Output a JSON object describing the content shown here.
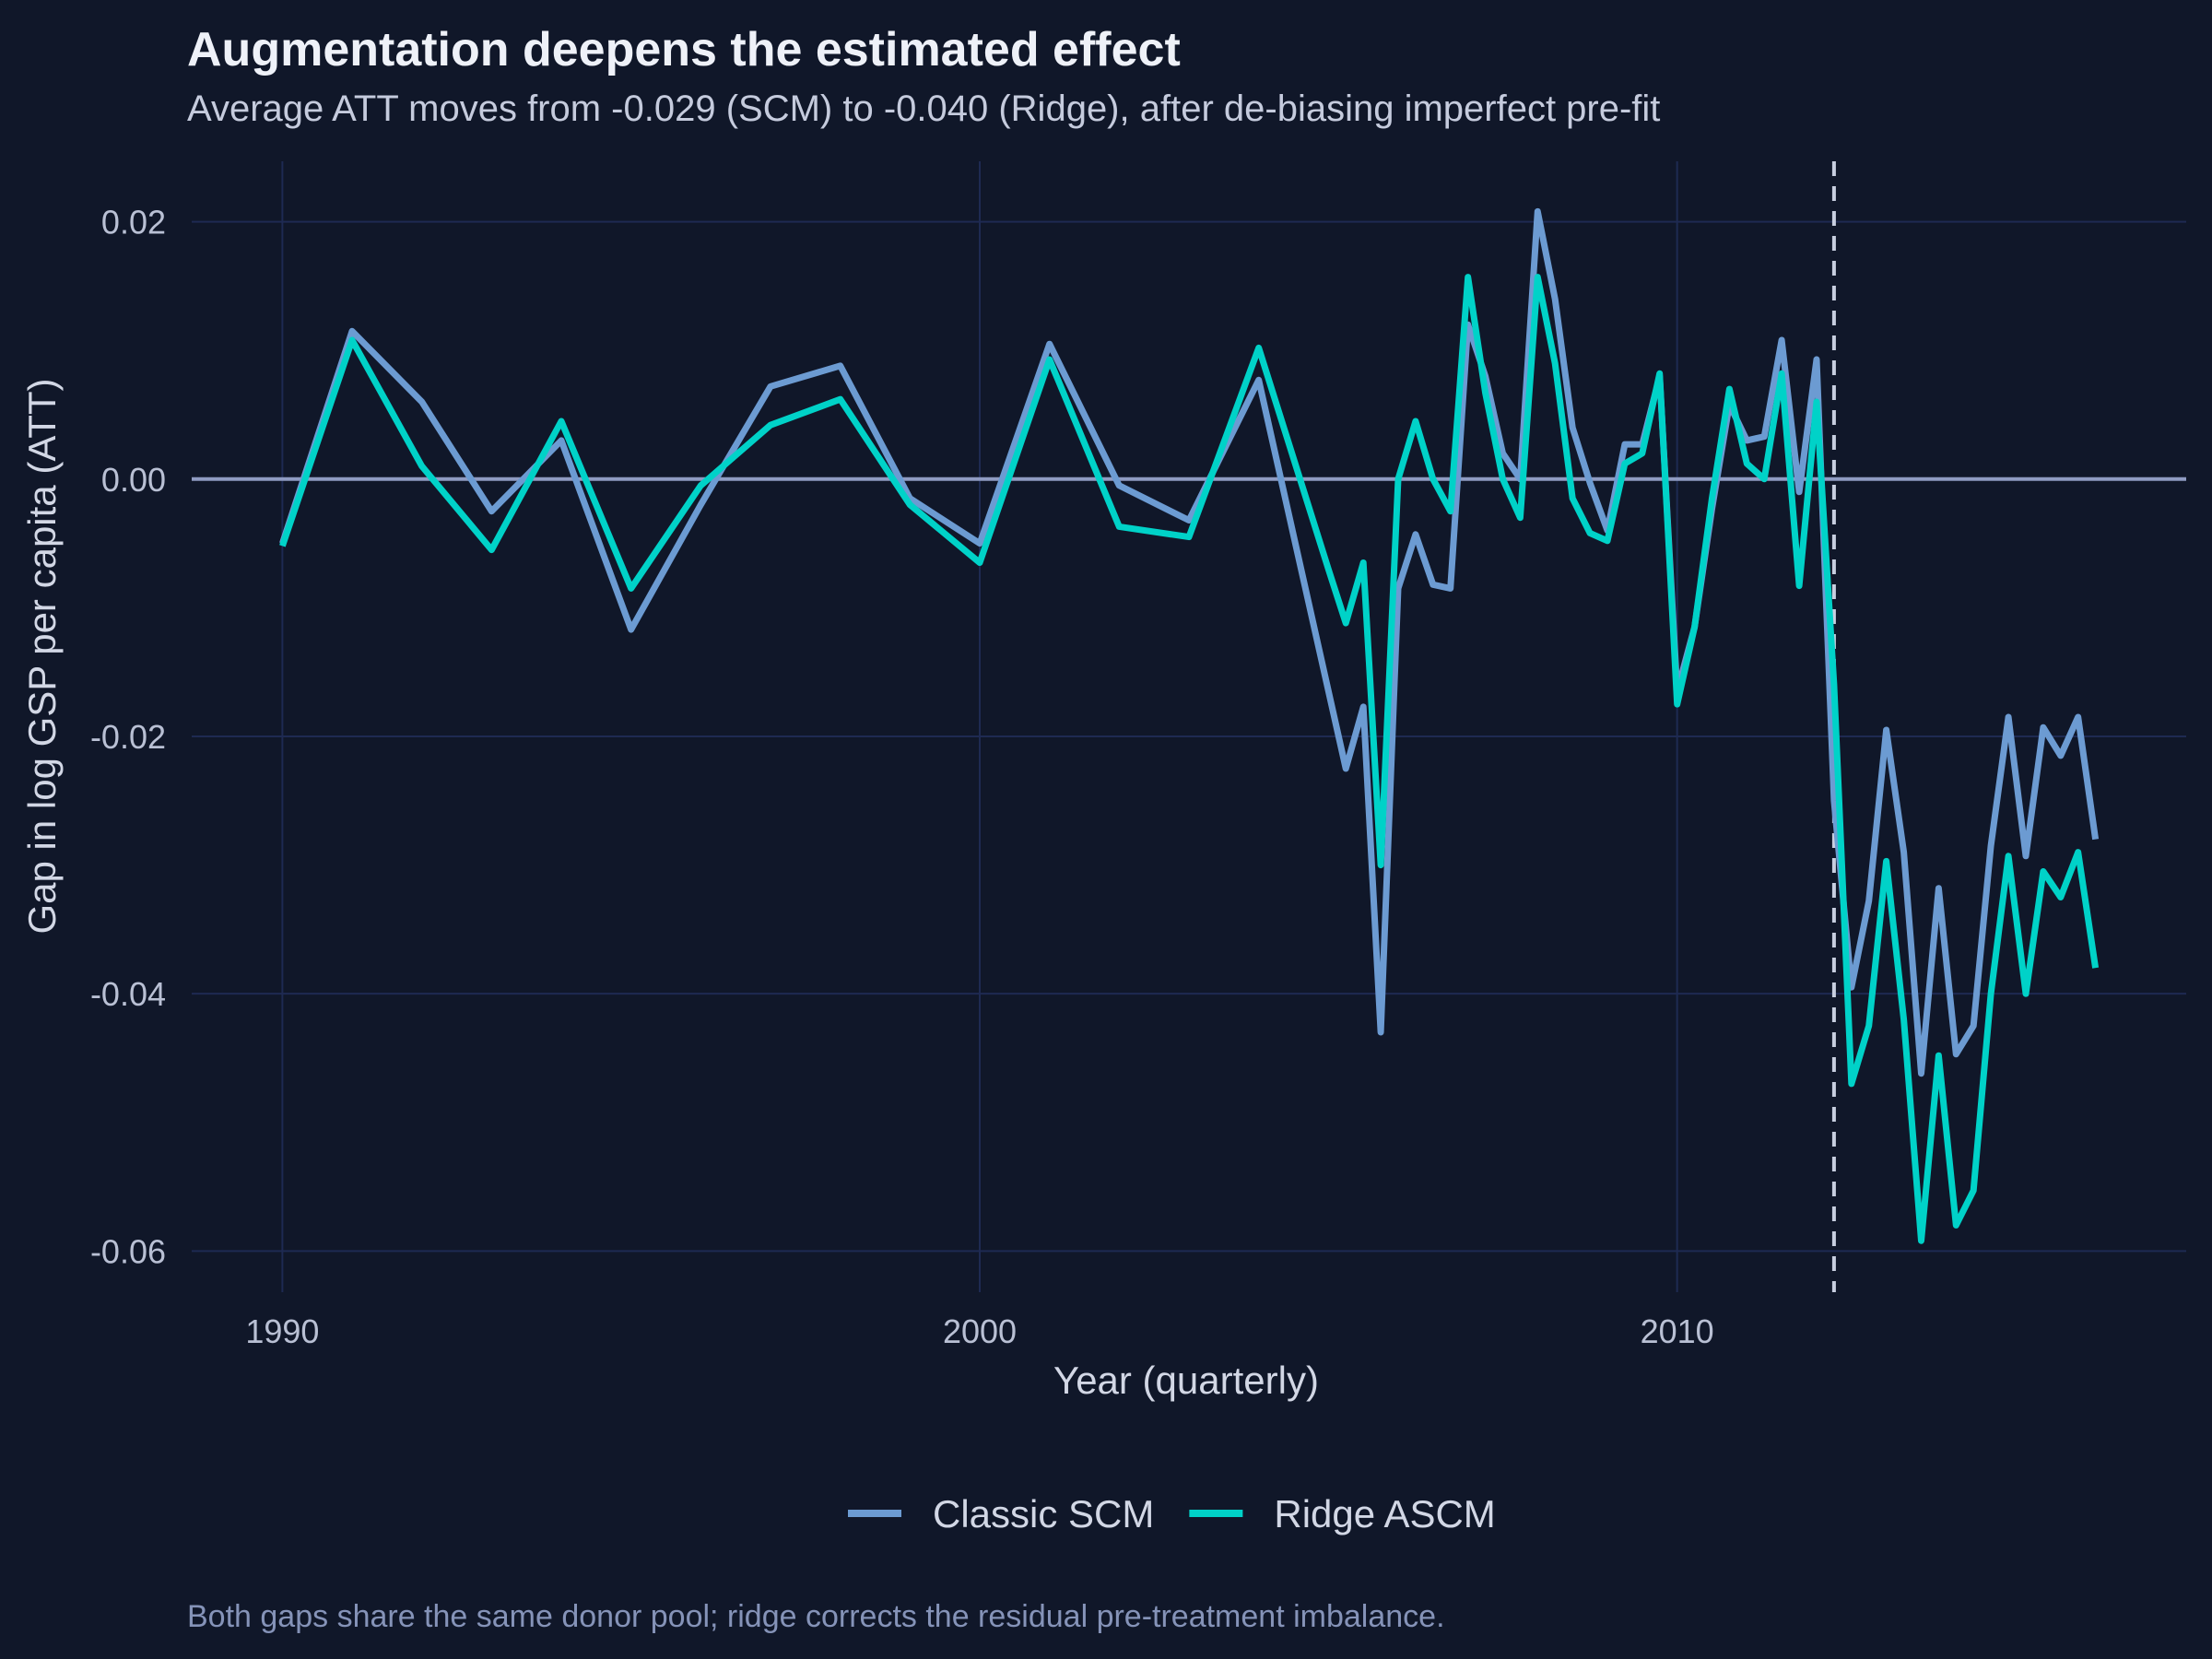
{
  "title": "Augmentation deepens the estimated effect",
  "subtitle": "Average ATT moves from -0.029 (SCM) to -0.040 (Ridge), after de-biasing imperfect pre-fit",
  "caption": "Both gaps share the same donor pool; ridge corrects the residual pre-treatment imbalance.",
  "colors": {
    "background": "#101729",
    "grid": "#1e2a52",
    "zero_line": "#8f9bc2",
    "treatment_line": "#c8cfe0",
    "classic_scm": "#6c9bd2",
    "ridge_ascm": "#00d2c8"
  },
  "chart_data": {
    "type": "line",
    "xlabel": "Year (quarterly)",
    "ylabel": "Gap in log GSP per capita (ATT)",
    "xlim": [
      1988.7,
      2017.3
    ],
    "ylim": [
      -0.0632,
      0.0247
    ],
    "x_ticks": [
      1990,
      2000,
      2010
    ],
    "x_tick_labels": [
      "1990",
      "2000",
      "2010"
    ],
    "y_ticks": [
      0.02,
      0.0,
      -0.02,
      -0.04,
      -0.06
    ],
    "y_tick_labels": [
      "0.02",
      "0.00",
      "-0.02",
      "-0.04",
      "-0.06"
    ],
    "reference_hline": 0.0,
    "treatment_vline": 2012.25,
    "grid": true,
    "legend_position": "bottom",
    "series": [
      {
        "name": "Classic SCM",
        "color": "#6c9bd2",
        "points": [
          [
            1990.0,
            -0.005
          ],
          [
            1991.0,
            0.0115
          ],
          [
            1992.0,
            0.006
          ],
          [
            1993.0,
            -0.0025
          ],
          [
            1994.0,
            0.003
          ],
          [
            1995.0,
            -0.0117
          ],
          [
            1996.0,
            -0.002
          ],
          [
            1997.0,
            0.0072
          ],
          [
            1998.0,
            0.0088
          ],
          [
            1999.0,
            -0.0015
          ],
          [
            2000.0,
            -0.005
          ],
          [
            2001.0,
            0.0105
          ],
          [
            2002.0,
            -0.0005
          ],
          [
            2003.0,
            -0.0032
          ],
          [
            2004.0,
            0.0077
          ],
          [
            2005.25,
            -0.0225
          ],
          [
            2005.5,
            -0.0177
          ],
          [
            2005.75,
            -0.043
          ],
          [
            2006.0,
            -0.0085
          ],
          [
            2006.25,
            -0.0043
          ],
          [
            2006.5,
            -0.0082
          ],
          [
            2006.75,
            -0.0085
          ],
          [
            2007.0,
            0.012
          ],
          [
            2007.25,
            0.008
          ],
          [
            2007.5,
            0.002
          ],
          [
            2007.75,
            0.0
          ],
          [
            2008.0,
            0.0208
          ],
          [
            2008.25,
            0.014
          ],
          [
            2008.5,
            0.004
          ],
          [
            2008.75,
            -0.0003
          ],
          [
            2009.0,
            -0.004
          ],
          [
            2009.25,
            0.0027
          ],
          [
            2009.5,
            0.0027
          ],
          [
            2009.75,
            0.008
          ],
          [
            2010.0,
            -0.0165
          ],
          [
            2010.25,
            -0.0115
          ],
          [
            2010.5,
            -0.0023
          ],
          [
            2010.75,
            0.0058
          ],
          [
            2011.0,
            0.003
          ],
          [
            2011.25,
            0.0033
          ],
          [
            2011.5,
            0.0108
          ],
          [
            2011.75,
            -0.001
          ],
          [
            2012.0,
            0.0093
          ],
          [
            2012.25,
            -0.025
          ],
          [
            2012.5,
            -0.0395
          ],
          [
            2012.75,
            -0.0328
          ],
          [
            2013.0,
            -0.0195
          ],
          [
            2013.25,
            -0.029
          ],
          [
            2013.5,
            -0.0462
          ],
          [
            2013.75,
            -0.0318
          ],
          [
            2014.0,
            -0.0447
          ],
          [
            2014.25,
            -0.0425
          ],
          [
            2014.5,
            -0.0285
          ],
          [
            2014.75,
            -0.0185
          ],
          [
            2015.0,
            -0.0293
          ],
          [
            2015.25,
            -0.0193
          ],
          [
            2015.5,
            -0.0215
          ],
          [
            2015.75,
            -0.0185
          ],
          [
            2016.0,
            -0.028
          ]
        ]
      },
      {
        "name": "Ridge ASCM",
        "color": "#00d2c8",
        "points": [
          [
            1990.0,
            -0.0052
          ],
          [
            1991.0,
            0.0108
          ],
          [
            1992.0,
            0.001
          ],
          [
            1993.0,
            -0.0055
          ],
          [
            1994.0,
            0.0045
          ],
          [
            1995.0,
            -0.0085
          ],
          [
            1996.0,
            -0.0005
          ],
          [
            1997.0,
            0.0042
          ],
          [
            1998.0,
            0.0062
          ],
          [
            1999.0,
            -0.002
          ],
          [
            2000.0,
            -0.0065
          ],
          [
            2001.0,
            0.0093
          ],
          [
            2002.0,
            -0.0037
          ],
          [
            2003.0,
            -0.0045
          ],
          [
            2004.0,
            0.0102
          ],
          [
            2005.0,
            -0.007
          ],
          [
            2005.25,
            -0.0112
          ],
          [
            2005.5,
            -0.0065
          ],
          [
            2005.75,
            -0.03
          ],
          [
            2006.0,
            0.0
          ],
          [
            2006.25,
            0.0045
          ],
          [
            2006.5,
            0.0
          ],
          [
            2006.75,
            -0.0025
          ],
          [
            2007.0,
            0.0157
          ],
          [
            2007.25,
            0.0067
          ],
          [
            2007.5,
            0.0
          ],
          [
            2007.75,
            -0.003
          ],
          [
            2008.0,
            0.0157
          ],
          [
            2008.25,
            0.009
          ],
          [
            2008.5,
            -0.0015
          ],
          [
            2008.75,
            -0.0042
          ],
          [
            2009.0,
            -0.0048
          ],
          [
            2009.25,
            0.0012
          ],
          [
            2009.5,
            0.002
          ],
          [
            2009.75,
            0.0082
          ],
          [
            2010.0,
            -0.0175
          ],
          [
            2010.25,
            -0.0115
          ],
          [
            2010.5,
            -0.0015
          ],
          [
            2010.75,
            0.007
          ],
          [
            2011.0,
            0.0012
          ],
          [
            2011.25,
            0.0
          ],
          [
            2011.5,
            0.0082
          ],
          [
            2011.75,
            -0.0083
          ],
          [
            2012.0,
            0.006
          ],
          [
            2012.25,
            -0.016
          ],
          [
            2012.5,
            -0.047
          ],
          [
            2012.75,
            -0.0425
          ],
          [
            2013.0,
            -0.0297
          ],
          [
            2013.25,
            -0.042
          ],
          [
            2013.5,
            -0.0592
          ],
          [
            2013.75,
            -0.0448
          ],
          [
            2014.0,
            -0.058
          ],
          [
            2014.25,
            -0.0553
          ],
          [
            2014.5,
            -0.04
          ],
          [
            2014.75,
            -0.0293
          ],
          [
            2015.0,
            -0.04
          ],
          [
            2015.25,
            -0.0305
          ],
          [
            2015.5,
            -0.0325
          ],
          [
            2015.75,
            -0.029
          ],
          [
            2016.0,
            -0.038
          ]
        ]
      }
    ]
  }
}
